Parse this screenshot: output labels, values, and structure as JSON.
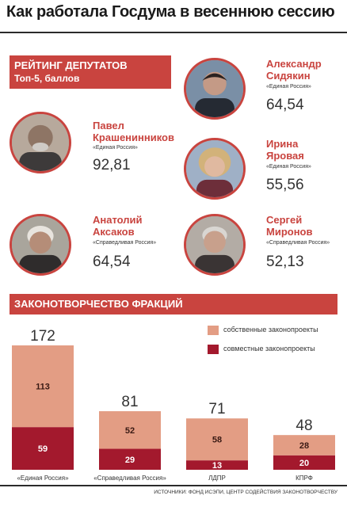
{
  "title": "Как работала Госдума в весеннюю сессию",
  "rating": {
    "heading": "РЕЙТИНГ ДЕПУТАТОВ",
    "subheading": "Топ-5, баллов",
    "deputies": [
      {
        "name1": "Павел",
        "name2": "Крашенинников",
        "party": "«Единая Россия»",
        "score": "92,81"
      },
      {
        "name1": "Александр",
        "name2": "Сидякин",
        "party": "«Единая Россия»",
        "score": "64,54"
      },
      {
        "name1": "Ирина",
        "name2": "Яровая",
        "party": "«Единая Россия»",
        "score": "55,56"
      },
      {
        "name1": "Анатолий",
        "name2": "Аксаков",
        "party": "«Справедливая Россия»",
        "score": "64,54"
      },
      {
        "name1": "Сергей",
        "name2": "Миронов",
        "party": "«Справедливая Россия»",
        "score": "52,13"
      }
    ]
  },
  "chart_heading": "ЗАКОНОТВОРЧЕСТВО ФРАКЦИЙ",
  "colors": {
    "accent": "#c9443f",
    "own": "#e39d84",
    "joint": "#a3192d"
  },
  "chart_data": {
    "type": "bar",
    "stacked": true,
    "categories": [
      "«Единая Россия»",
      "«Справедливая Россия»",
      "ЛДПР",
      "КПРФ"
    ],
    "totals": [
      172,
      81,
      71,
      48
    ],
    "series": [
      {
        "name": "совместные законопроекты",
        "values": [
          59,
          29,
          13,
          20
        ],
        "color": "#a3192d"
      },
      {
        "name": "собственные законопроекты",
        "values": [
          113,
          52,
          58,
          28
        ],
        "color": "#e39d84"
      }
    ],
    "legend_position": "top-right"
  },
  "source": "ИСТОЧНИКИ: ФОНД ИСЭПИ, ЦЕНТР СОДЕЙСТВИЯ ЗАКОНОТВОРЧЕСТВУ"
}
